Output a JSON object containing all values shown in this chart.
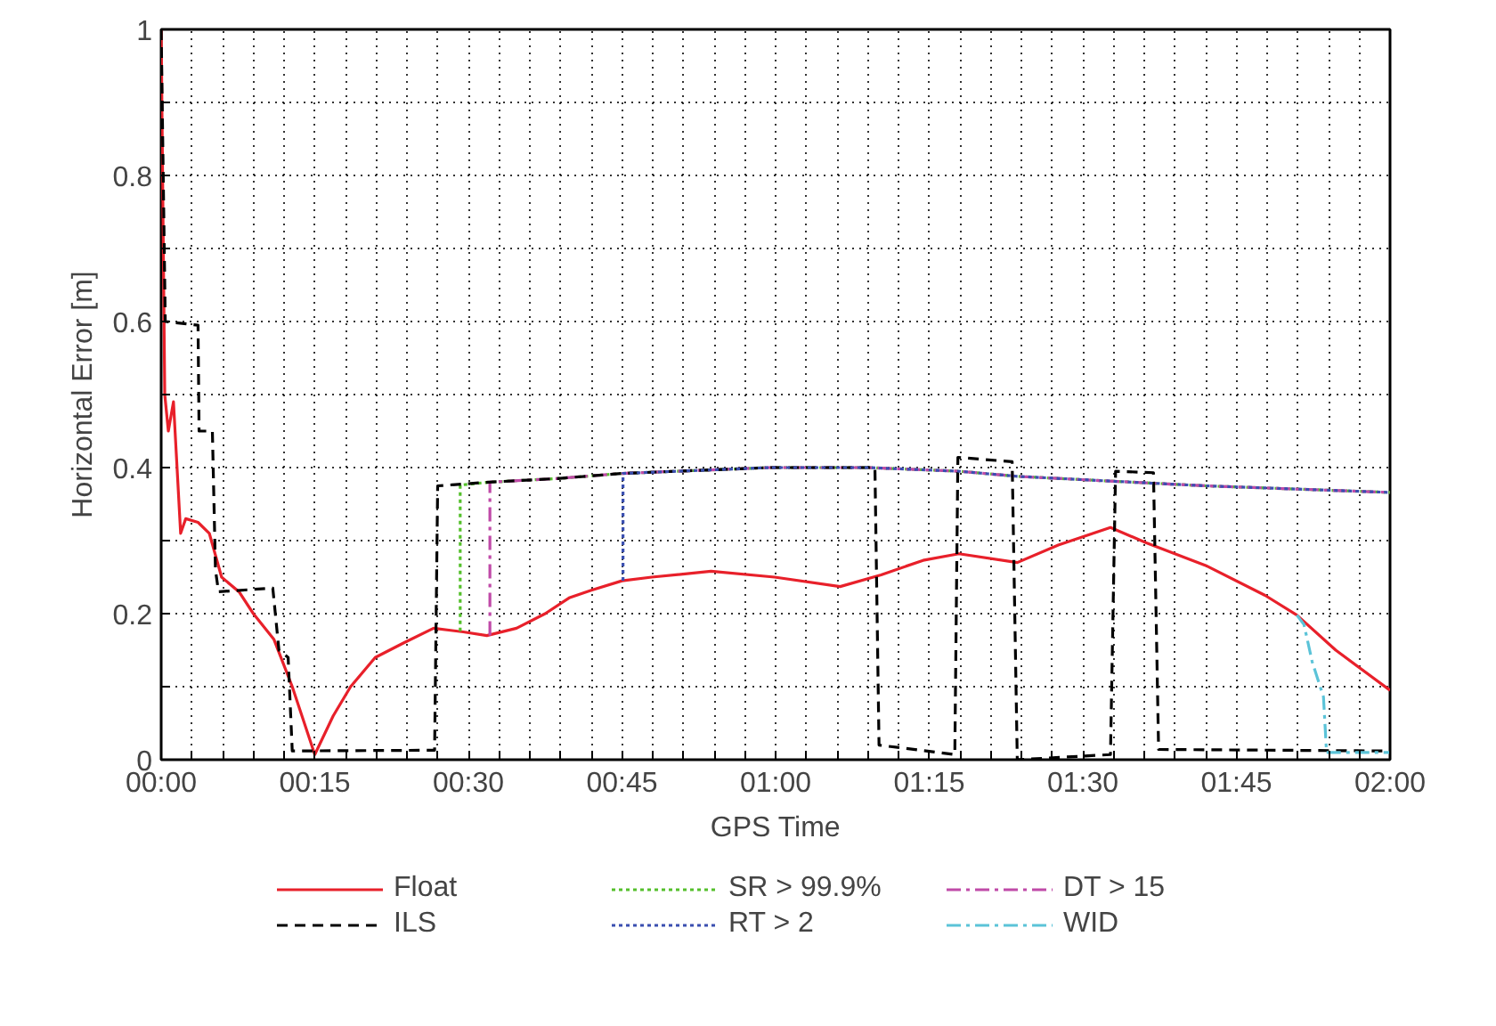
{
  "chart_data": {
    "type": "line",
    "xlabel": "GPS Time",
    "ylabel": "Horizontal Error [m]",
    "xlim": [
      0,
      120
    ],
    "ylim": [
      0,
      1
    ],
    "xticks": [
      {
        "value": 0,
        "label": "00:00"
      },
      {
        "value": 3,
        "label": null
      },
      {
        "value": 6,
        "label": null
      },
      {
        "value": 9,
        "label": null
      },
      {
        "value": 12,
        "label": null
      },
      {
        "value": 15,
        "label": "00:15"
      },
      {
        "value": 18,
        "label": null
      },
      {
        "value": 21,
        "label": null
      },
      {
        "value": 24,
        "label": null
      },
      {
        "value": 27,
        "label": null
      },
      {
        "value": 30,
        "label": "00:30"
      },
      {
        "value": 33,
        "label": null
      },
      {
        "value": 36,
        "label": null
      },
      {
        "value": 39,
        "label": null
      },
      {
        "value": 42,
        "label": null
      },
      {
        "value": 45,
        "label": "00:45"
      },
      {
        "value": 48,
        "label": null
      },
      {
        "value": 51,
        "label": null
      },
      {
        "value": 54,
        "label": null
      },
      {
        "value": 57,
        "label": null
      },
      {
        "value": 60,
        "label": "01:00"
      },
      {
        "value": 63,
        "label": null
      },
      {
        "value": 66,
        "label": null
      },
      {
        "value": 69,
        "label": null
      },
      {
        "value": 72,
        "label": null
      },
      {
        "value": 75,
        "label": "01:15"
      },
      {
        "value": 78,
        "label": null
      },
      {
        "value": 81,
        "label": null
      },
      {
        "value": 84,
        "label": null
      },
      {
        "value": 87,
        "label": null
      },
      {
        "value": 90,
        "label": "01:30"
      },
      {
        "value": 93,
        "label": null
      },
      {
        "value": 96,
        "label": null
      },
      {
        "value": 99,
        "label": null
      },
      {
        "value": 102,
        "label": null
      },
      {
        "value": 105,
        "label": "01:45"
      },
      {
        "value": 108,
        "label": null
      },
      {
        "value": 111,
        "label": null
      },
      {
        "value": 114,
        "label": null
      },
      {
        "value": 117,
        "label": null
      },
      {
        "value": 120,
        "label": "02:00"
      }
    ],
    "yticks": [
      0,
      {
        "value": 0.1,
        "label": null
      },
      0.2,
      {
        "value": 0.3,
        "label": null
      },
      0.4,
      {
        "value": 0.5,
        "label": null
      },
      0.6,
      {
        "value": 0.7,
        "label": null
      },
      0.8,
      {
        "value": 0.9,
        "label": null
      },
      1
    ],
    "grid": true,
    "legend": "bottom",
    "series": [
      {
        "name": "Float",
        "color": "#e8202a",
        "line_style": "solid",
        "x": [
          0,
          0.35,
          0.7,
          1.2,
          1.9,
          2.4,
          3.6,
          4.7,
          5.9,
          7.6,
          9,
          11,
          12.8,
          15,
          16.8,
          18.5,
          20.9,
          23.7,
          26.6,
          29.5,
          31.8,
          34.7,
          37.5,
          39.9,
          42,
          45,
          47.9,
          53.7,
          59.9,
          66.3,
          70.3,
          74.4,
          77.9,
          83.6,
          87.6,
          92.7,
          96.2,
          102,
          107.8,
          110.9,
          114.7,
          120
        ],
        "values": [
          1.0,
          0.5,
          0.45,
          0.49,
          0.31,
          0.33,
          0.325,
          0.31,
          0.25,
          0.23,
          0.2,
          0.165,
          0.1,
          0.007,
          0.06,
          0.1,
          0.14,
          0.16,
          0.18,
          0.175,
          0.17,
          0.18,
          0.2,
          0.222,
          0.232,
          0.245,
          0.25,
          0.258,
          0.25,
          0.237,
          0.253,
          0.273,
          0.282,
          0.27,
          0.294,
          0.318,
          0.297,
          0.266,
          0.225,
          0.198,
          0.15,
          0.095
        ]
      },
      {
        "name": "SR > 99.9%",
        "color": "#55c02c",
        "line_style": "dotted",
        "x": [
          29.2,
          29.2,
          32,
          38.7,
          45,
          59.4,
          69,
          77.9,
          83.6,
          93.4,
          102,
          120
        ],
        "values": [
          0.176,
          0.376,
          0.38,
          0.385,
          0.392,
          0.4,
          0.4,
          0.395,
          0.388,
          0.381,
          0.375,
          0.366
        ]
      },
      {
        "name": "DT > 15",
        "color": "#c04aa8",
        "line_style": "dashdot",
        "x": [
          32.1,
          32.1,
          38.7,
          45,
          59.4,
          69,
          77.9,
          83.6,
          93.4,
          102,
          120
        ],
        "values": [
          0.17,
          0.38,
          0.385,
          0.392,
          0.4,
          0.4,
          0.395,
          0.388,
          0.381,
          0.375,
          0.366
        ]
      },
      {
        "name": "ILS",
        "color": "#000000",
        "line_style": "dashed",
        "x": [
          0,
          0.4,
          3.6,
          3.7,
          5.0,
          5.3,
          5.6,
          10.9,
          11.5,
          12.4,
          12.8,
          26.7,
          27,
          32,
          38.7,
          45,
          59.4,
          69.7,
          70.1,
          77.5,
          77.8,
          83.1,
          83.6,
          92.7,
          93.2,
          96.9,
          97.4,
          120
        ],
        "values": [
          1.0,
          0.6,
          0.595,
          0.45,
          0.45,
          0.26,
          0.23,
          0.235,
          0.15,
          0.14,
          0.012,
          0.013,
          0.375,
          0.38,
          0.385,
          0.392,
          0.4,
          0.4,
          0.02,
          0.007,
          0.414,
          0.408,
          0.0,
          0.007,
          0.395,
          0.393,
          0.014,
          0.012
        ]
      },
      {
        "name": "RT > 2",
        "color": "#3a4fb0",
        "line_style": "dotted",
        "x": [
          45.1,
          45.1,
          59.4,
          69,
          77.9,
          83.6,
          93.4,
          102,
          120
        ],
        "values": [
          0.245,
          0.392,
          0.4,
          0.4,
          0.395,
          0.388,
          0.381,
          0.375,
          0.366
        ]
      },
      {
        "name": "WID",
        "color": "#5bc3d8",
        "line_style": "dashdot",
        "x": [
          110.9,
          111.6,
          112.4,
          113.5,
          113.8,
          120
        ],
        "values": [
          0.198,
          0.185,
          0.134,
          0.086,
          0.01,
          0.01
        ]
      }
    ]
  }
}
